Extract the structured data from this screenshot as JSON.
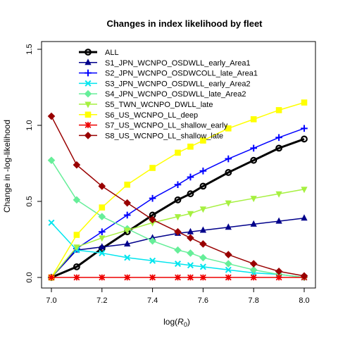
{
  "chart_data": {
    "type": "line",
    "title": "Changes in index likelihood by fleet",
    "xlabel_prefix": "log(",
    "xlabel_symbol": "R",
    "xlabel_subscript": "0",
    "xlabel_suffix": ")",
    "ylabel": "Change in -log-likelihood",
    "xlim": [
      7.0,
      8.0
    ],
    "ylim": [
      0.0,
      1.5
    ],
    "xticks": [
      7.0,
      7.2,
      7.4,
      7.6,
      7.8,
      8.0
    ],
    "xtick_labels": [
      "7.0",
      "7.2",
      "7.4",
      "7.6",
      "7.8",
      "8.0"
    ],
    "yticks": [
      0.0,
      0.5,
      1.0,
      1.5
    ],
    "ytick_labels": [
      "0.0",
      "0.5",
      "1.0",
      "1.5"
    ],
    "grid": false,
    "legend_position": "top-left",
    "x": [
      7.0,
      7.1,
      7.2,
      7.3,
      7.4,
      7.5,
      7.55,
      7.6,
      7.7,
      7.8,
      7.9,
      8.0
    ],
    "series": [
      {
        "name": "ALL",
        "color": "#000000",
        "marker": "open-circle",
        "width": 3,
        "values": [
          0.0,
          0.07,
          0.19,
          0.3,
          0.41,
          0.51,
          0.55,
          0.6,
          0.69,
          0.77,
          0.85,
          0.91
        ]
      },
      {
        "name": "S1_JPN_WCNPO_OSDWLL_early_Area1",
        "color": "#00008B",
        "marker": "triangle",
        "width": 1.5,
        "values": [
          0.0,
          0.18,
          0.2,
          0.22,
          0.26,
          0.29,
          0.3,
          0.31,
          0.33,
          0.35,
          0.37,
          0.39
        ]
      },
      {
        "name": "S2_JPN_WCNPO_OSDWCOLL_late_Area1",
        "color": "#0000FF",
        "marker": "plus",
        "width": 1.5,
        "values": [
          0.0,
          0.19,
          0.3,
          0.41,
          0.52,
          0.61,
          0.66,
          0.7,
          0.78,
          0.85,
          0.92,
          0.98
        ]
      },
      {
        "name": "S3_JPN_WCNPO_OSDWLL_early_Area2",
        "color": "#00E5EE",
        "marker": "x",
        "width": 1.5,
        "values": [
          0.36,
          0.18,
          0.16,
          0.13,
          0.11,
          0.09,
          0.08,
          0.07,
          0.05,
          0.03,
          0.02,
          0.0
        ]
      },
      {
        "name": "S4_JPN_WCNPO_OSDWLL_late_Area2",
        "color": "#66EE99",
        "marker": "diamond",
        "width": 1.5,
        "values": [
          0.77,
          0.51,
          0.4,
          0.32,
          0.24,
          0.18,
          0.16,
          0.13,
          0.09,
          0.05,
          0.02,
          0.0
        ]
      },
      {
        "name": "S5_TWN_WCNPO_DWLL_late",
        "color": "#A6F040",
        "marker": "triangle-down",
        "width": 1.5,
        "values": [
          0.0,
          0.2,
          0.26,
          0.31,
          0.36,
          0.4,
          0.42,
          0.45,
          0.49,
          0.52,
          0.55,
          0.58
        ]
      },
      {
        "name": "S6_US_WCNPO_LL_deep",
        "color": "#FFFF00",
        "marker": "square",
        "width": 1.5,
        "values": [
          0.0,
          0.28,
          0.46,
          0.61,
          0.72,
          0.82,
          0.86,
          0.9,
          0.98,
          1.04,
          1.1,
          1.15
        ]
      },
      {
        "name": "S7_US_WCNPO_LL_shallow_early",
        "color": "#EE0000",
        "marker": "asterisk",
        "width": 1.5,
        "values": [
          0.0,
          0.0,
          0.0,
          0.0,
          0.0,
          0.0,
          0.0,
          0.0,
          0.0,
          0.0,
          0.0,
          0.0
        ]
      },
      {
        "name": "S8_US_WCNPO_LL_shallow_late",
        "color": "#990000",
        "marker": "filled-diamond",
        "width": 1.5,
        "values": [
          1.06,
          0.74,
          0.6,
          0.49,
          0.38,
          0.3,
          0.26,
          0.22,
          0.15,
          0.09,
          0.04,
          0.01
        ]
      }
    ]
  }
}
